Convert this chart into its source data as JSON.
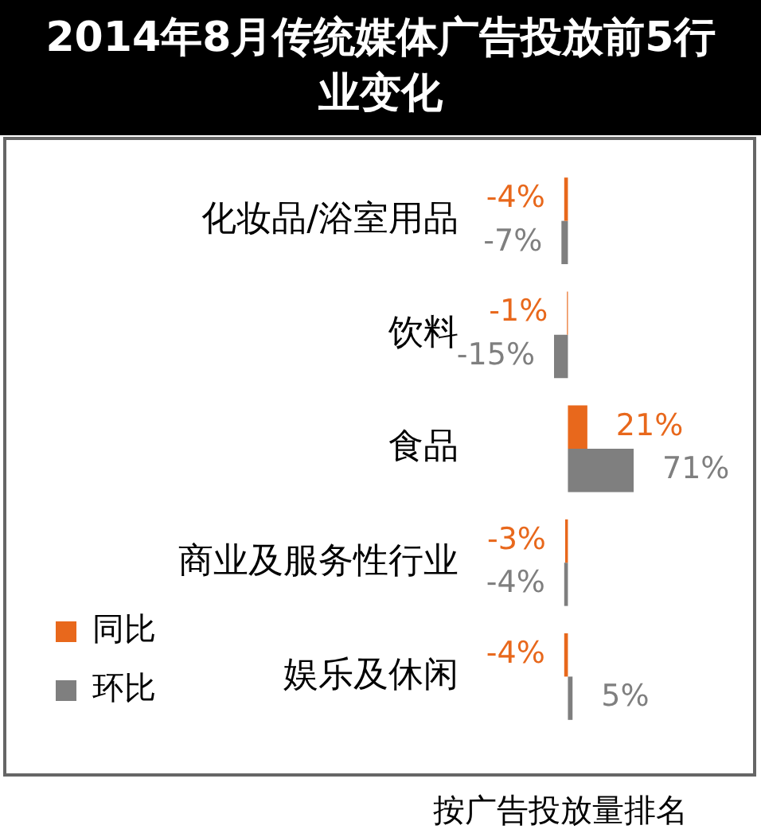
{
  "chart_data": {
    "type": "bar",
    "title": "2014年8月传统媒体广告投放前5行业变化",
    "orientation": "horizontal",
    "categories": [
      "化妆品/浴室用品",
      "饮料",
      "食品",
      "商业及服务性行业",
      "娱乐及休闲"
    ],
    "series": [
      {
        "name": "同比",
        "color": "#e8681c",
        "values": [
          -4,
          -1,
          21,
          -3,
          -4
        ],
        "value_labels": [
          "-4%",
          "-1%",
          "21%",
          "-3%",
          "-4%"
        ]
      },
      {
        "name": "环比",
        "color": "#7f7f7f",
        "values": [
          -7,
          -15,
          71,
          -4,
          5
        ],
        "value_labels": [
          "-7%",
          "-15%",
          "71%",
          "-4%",
          "5%"
        ]
      }
    ],
    "legend": "bottom left",
    "tick_labels": "y",
    "annotations": [
      "按广告投放量排名"
    ]
  }
}
